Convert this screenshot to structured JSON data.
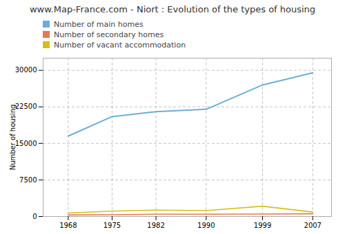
{
  "chart_data": {
    "type": "line",
    "title": "www.Map-France.com - Niort : Evolution of the types of housing",
    "ylabel": "Number of housing",
    "x": [
      1968,
      1975,
      1982,
      1990,
      1999,
      2007
    ],
    "series": [
      {
        "name": "Number of main homes",
        "color": "#6baed6",
        "values": [
          16500,
          20500,
          21500,
          22000,
          27000,
          29500
        ]
      },
      {
        "name": "Number of secondary homes",
        "color": "#e07b54",
        "values": [
          300,
          350,
          450,
          450,
          500,
          550
        ]
      },
      {
        "name": "Number of vacant accommodation",
        "color": "#d4c015",
        "values": [
          700,
          1100,
          1300,
          1200,
          2100,
          900
        ]
      }
    ],
    "xlim": [
      1964,
      2010
    ],
    "xticks": [
      1968,
      1975,
      1982,
      1990,
      1999,
      2007
    ],
    "ylim": [
      0,
      32500
    ],
    "yticks": [
      0,
      7500,
      15000,
      22500,
      30000
    ],
    "grid": true,
    "legend": "top"
  }
}
